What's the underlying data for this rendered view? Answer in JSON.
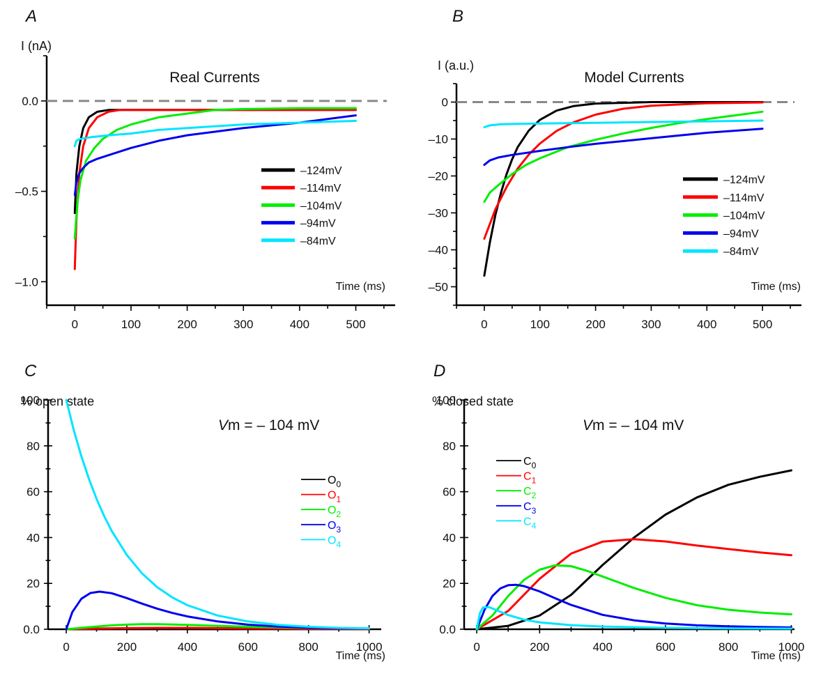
{
  "chart_data": [
    {
      "panel": "A",
      "type": "line",
      "ylabel": "I (nA)",
      "title": "Real Currents",
      "xlabel": "Time (ms)",
      "xlim": [
        -50,
        570
      ],
      "ylim": [
        -1.13,
        0.25
      ],
      "xticks": [
        0,
        100,
        200,
        300,
        400,
        500
      ],
      "yticks": [
        0.0,
        -0.5,
        -1.0
      ],
      "ytick_labels": [
        "0.0",
        "–0.5",
        "–1.0"
      ],
      "zero_line": 0,
      "series": [
        {
          "name": "–124mV",
          "color": "#000000",
          "x": [
            0,
            3,
            8,
            15,
            25,
            40,
            60,
            80,
            100,
            150,
            200,
            300,
            400,
            500
          ],
          "y": [
            -0.62,
            -0.4,
            -0.25,
            -0.15,
            -0.09,
            -0.06,
            -0.05,
            -0.05,
            -0.05,
            -0.05,
            -0.05,
            -0.05,
            -0.05,
            -0.05
          ]
        },
        {
          "name": "–114mV",
          "color": "#ff0000",
          "x": [
            0,
            3,
            8,
            15,
            25,
            40,
            60,
            80,
            100,
            150,
            200,
            300,
            400,
            500
          ],
          "y": [
            -0.93,
            -0.65,
            -0.4,
            -0.25,
            -0.15,
            -0.09,
            -0.06,
            -0.05,
            -0.05,
            -0.05,
            -0.05,
            -0.05,
            -0.05,
            -0.05
          ]
        },
        {
          "name": "–104mV",
          "color": "#00ee00",
          "x": [
            0,
            5,
            10,
            20,
            35,
            50,
            75,
            100,
            150,
            200,
            250,
            300,
            400,
            500
          ],
          "y": [
            -0.76,
            -0.55,
            -0.44,
            -0.33,
            -0.26,
            -0.21,
            -0.16,
            -0.13,
            -0.09,
            -0.07,
            -0.05,
            -0.045,
            -0.04,
            -0.04
          ]
        },
        {
          "name": "–94mV",
          "color": "#0000ee",
          "x": [
            0,
            3,
            8,
            15,
            25,
            40,
            60,
            100,
            150,
            200,
            300,
            400,
            500
          ],
          "y": [
            -0.52,
            -0.45,
            -0.4,
            -0.37,
            -0.34,
            -0.32,
            -0.3,
            -0.26,
            -0.22,
            -0.19,
            -0.15,
            -0.12,
            -0.08
          ]
        },
        {
          "name": "–84mV",
          "color": "#00e5ff",
          "x": [
            0,
            3,
            10,
            30,
            60,
            100,
            150,
            200,
            300,
            400,
            500
          ],
          "y": [
            -0.25,
            -0.22,
            -0.21,
            -0.2,
            -0.19,
            -0.18,
            -0.16,
            -0.15,
            -0.13,
            -0.12,
            -0.11
          ]
        }
      ]
    },
    {
      "panel": "B",
      "type": "line",
      "ylabel": "I (a.u.)",
      "title": "Model Currents",
      "xlabel": "Time (ms)",
      "xlim": [
        -50,
        570
      ],
      "ylim": [
        -55,
        5
      ],
      "xticks": [
        0,
        100,
        200,
        300,
        400,
        500
      ],
      "yticks": [
        0,
        -10,
        -20,
        -30,
        -40,
        -50
      ],
      "ytick_labels": [
        "0",
        "–10",
        "–20",
        "–30",
        "–40",
        "–50"
      ],
      "zero_line": 0,
      "series": [
        {
          "name": "–124mV",
          "color": "#000000",
          "x": [
            0,
            10,
            20,
            30,
            40,
            50,
            60,
            80,
            100,
            130,
            160,
            200,
            300,
            400,
            500
          ],
          "y": [
            -47,
            -38,
            -30.5,
            -24.5,
            -19.5,
            -15.5,
            -12.2,
            -7.7,
            -4.8,
            -2.3,
            -1.1,
            -0.4,
            0,
            0,
            0
          ]
        },
        {
          "name": "–114mV",
          "color": "#ff0000",
          "x": [
            0,
            20,
            40,
            60,
            80,
            100,
            130,
            160,
            200,
            250,
            300,
            400,
            500
          ],
          "y": [
            -37,
            -29,
            -23,
            -18,
            -14.2,
            -11.2,
            -7.8,
            -5.5,
            -3.4,
            -1.8,
            -1.0,
            -0.3,
            -0.1
          ]
        },
        {
          "name": "–104mV",
          "color": "#00ee00",
          "x": [
            0,
            10,
            25,
            50,
            75,
            100,
            150,
            200,
            250,
            300,
            350,
            400,
            450,
            500
          ],
          "y": [
            -27,
            -24.5,
            -22.5,
            -19.5,
            -17,
            -15.2,
            -12.2,
            -10.2,
            -8.5,
            -7.0,
            -5.7,
            -4.6,
            -3.6,
            -2.6
          ]
        },
        {
          "name": "–94mV",
          "color": "#0000ee",
          "x": [
            0,
            10,
            25,
            50,
            100,
            150,
            200,
            300,
            400,
            500
          ],
          "y": [
            -17,
            -15.8,
            -15,
            -14.3,
            -13.2,
            -12.2,
            -11.3,
            -9.8,
            -8.3,
            -7.2
          ]
        },
        {
          "name": "–84mV",
          "color": "#00e5ff",
          "x": [
            0,
            10,
            30,
            100,
            200,
            300,
            400,
            500
          ],
          "y": [
            -6.8,
            -6.3,
            -6,
            -5.8,
            -5.6,
            -5.4,
            -5.2,
            -5.0
          ]
        }
      ]
    },
    {
      "panel": "C",
      "type": "line",
      "ylabel": "% open state",
      "title_prefix": "V",
      "title_rest": "m = – 104 mV",
      "xlabel": "Time (ms)",
      "xlim": [
        -60,
        1040
      ],
      "ylim": [
        0,
        100
      ],
      "xticks": [
        0,
        200,
        400,
        600,
        800,
        1000
      ],
      "yticks": [
        0,
        20,
        40,
        60,
        80,
        100
      ],
      "ytick_labels": [
        "0.0",
        "20",
        "40",
        "60",
        "80",
        "100"
      ],
      "series": [
        {
          "name": "O",
          "sub": "0",
          "color": "#000000",
          "x": [
            0,
            200,
            400,
            600,
            800,
            1000
          ],
          "y": [
            0,
            0.05,
            0.1,
            0.1,
            0.1,
            0.1
          ]
        },
        {
          "name": "O",
          "sub": "1",
          "color": "#ff0000",
          "x": [
            0,
            100,
            200,
            300,
            400,
            500,
            600,
            800,
            1000
          ],
          "y": [
            0,
            0.3,
            0.5,
            0.6,
            0.6,
            0.5,
            0.4,
            0.2,
            0.1
          ]
        },
        {
          "name": "O",
          "sub": "2",
          "color": "#00ee00",
          "x": [
            0,
            50,
            100,
            150,
            200,
            250,
            300,
            400,
            500,
            600,
            800,
            1000
          ],
          "y": [
            0,
            0.6,
            1.2,
            1.7,
            2.0,
            2.2,
            2.2,
            1.9,
            1.5,
            1.1,
            0.6,
            0.3
          ]
        },
        {
          "name": "O",
          "sub": "3",
          "color": "#0000ee",
          "x": [
            0,
            20,
            50,
            80,
            110,
            150,
            200,
            250,
            300,
            350,
            400,
            500,
            600,
            700,
            800,
            900,
            1000
          ],
          "y": [
            0,
            7.5,
            13.3,
            15.8,
            16.4,
            15.7,
            13.6,
            11.2,
            9.0,
            7.1,
            5.6,
            3.4,
            2.0,
            1.2,
            0.7,
            0.4,
            0.3
          ]
        },
        {
          "name": "O",
          "sub": "4",
          "color": "#00e5ff",
          "x": [
            0,
            25,
            50,
            75,
            100,
            125,
            150,
            200,
            250,
            300,
            350,
            400,
            500,
            600,
            700,
            800,
            900,
            1000
          ],
          "y": [
            100,
            86.8,
            75.4,
            65.5,
            56.9,
            49.4,
            42.9,
            32.4,
            24.4,
            18.4,
            13.9,
            10.5,
            6.0,
            3.4,
            1.9,
            1.1,
            0.6,
            0.4
          ]
        }
      ]
    },
    {
      "panel": "D",
      "type": "line",
      "ylabel": "% closed state",
      "title_prefix": "V",
      "title_rest": "m = – 104 mV",
      "xlabel": "Time (ms)",
      "xlim": [
        -40,
        1010
      ],
      "ylim": [
        0,
        100
      ],
      "xticks": [
        0,
        200,
        400,
        600,
        800,
        1000
      ],
      "yticks": [
        0,
        20,
        40,
        60,
        80,
        100
      ],
      "ytick_labels": [
        "0.0",
        "20",
        "40",
        "60",
        "80",
        "100"
      ],
      "series": [
        {
          "name": "C",
          "sub": "0",
          "color": "#000000",
          "x": [
            0,
            100,
            200,
            300,
            400,
            500,
            600,
            700,
            800,
            900,
            1000
          ],
          "y": [
            0,
            1.5,
            6,
            15,
            28,
            40,
            50,
            57.5,
            63,
            66.5,
            69.3
          ]
        },
        {
          "name": "C",
          "sub": "1",
          "color": "#ff0000",
          "x": [
            0,
            100,
            200,
            300,
            400,
            500,
            600,
            700,
            800,
            900,
            1000
          ],
          "y": [
            0,
            8,
            22,
            33,
            38.2,
            39.3,
            38.3,
            36.5,
            35,
            33.5,
            32.3
          ]
        },
        {
          "name": "C",
          "sub": "2",
          "color": "#00ee00",
          "x": [
            0,
            50,
            100,
            150,
            200,
            250,
            300,
            350,
            400,
            500,
            600,
            700,
            800,
            900,
            1000
          ],
          "y": [
            0,
            6,
            14.5,
            21.5,
            26,
            27.9,
            27.5,
            25.5,
            23,
            18,
            13.7,
            10.5,
            8.5,
            7.3,
            6.5
          ]
        },
        {
          "name": "C",
          "sub": "3",
          "color": "#0000ee",
          "x": [
            0,
            25,
            50,
            75,
            100,
            125,
            150,
            200,
            250,
            300,
            400,
            500,
            600,
            700,
            800,
            900,
            1000
          ],
          "y": [
            0,
            8.5,
            14.5,
            17.8,
            19.2,
            19.4,
            18.8,
            16.5,
            13.5,
            10.6,
            6.3,
            3.9,
            2.5,
            1.7,
            1.3,
            1.0,
            0.8
          ]
        },
        {
          "name": "C",
          "sub": "4",
          "color": "#00e5ff",
          "x": [
            0,
            10,
            20,
            40,
            60,
            100,
            150,
            200,
            300,
            400,
            600,
            800,
            1000
          ],
          "y": [
            0,
            7,
            9.5,
            9.6,
            8.5,
            6.2,
            4.2,
            3.0,
            1.8,
            1.2,
            0.6,
            0.4,
            0.3
          ]
        }
      ]
    }
  ]
}
